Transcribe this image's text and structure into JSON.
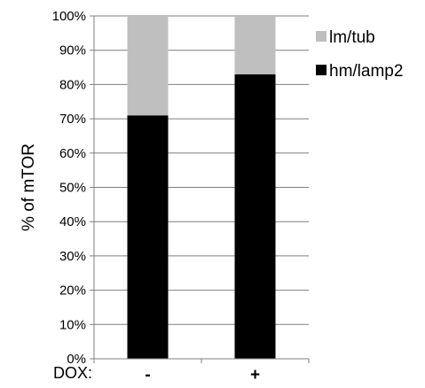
{
  "chart_data": {
    "type": "bar",
    "stacked": true,
    "percent_axis": true,
    "categories": [
      "-",
      "+"
    ],
    "category_axis_prefix": "DOX:",
    "series": [
      {
        "name": "hm/lamp2",
        "values": [
          71,
          83
        ],
        "color": "#000000"
      },
      {
        "name": "lm/tub",
        "values": [
          29,
          17
        ],
        "color": "#bfbfbf"
      }
    ],
    "ylabel": "% of mTOR",
    "ylim": [
      0,
      100
    ],
    "yticks": [
      {
        "value": 0,
        "label": "0%"
      },
      {
        "value": 10,
        "label": "10%"
      },
      {
        "value": 20,
        "label": "20%"
      },
      {
        "value": 30,
        "label": "30%"
      },
      {
        "value": 40,
        "label": "40%"
      },
      {
        "value": 50,
        "label": "50%"
      },
      {
        "value": 60,
        "label": "60%"
      },
      {
        "value": 70,
        "label": "70%"
      },
      {
        "value": 80,
        "label": "80%"
      },
      {
        "value": 90,
        "label": "90%"
      },
      {
        "value": 100,
        "label": "100%"
      }
    ],
    "grid": true,
    "legend_position": "right",
    "legend": [
      "lm/tub",
      "hm/lamp2"
    ]
  }
}
